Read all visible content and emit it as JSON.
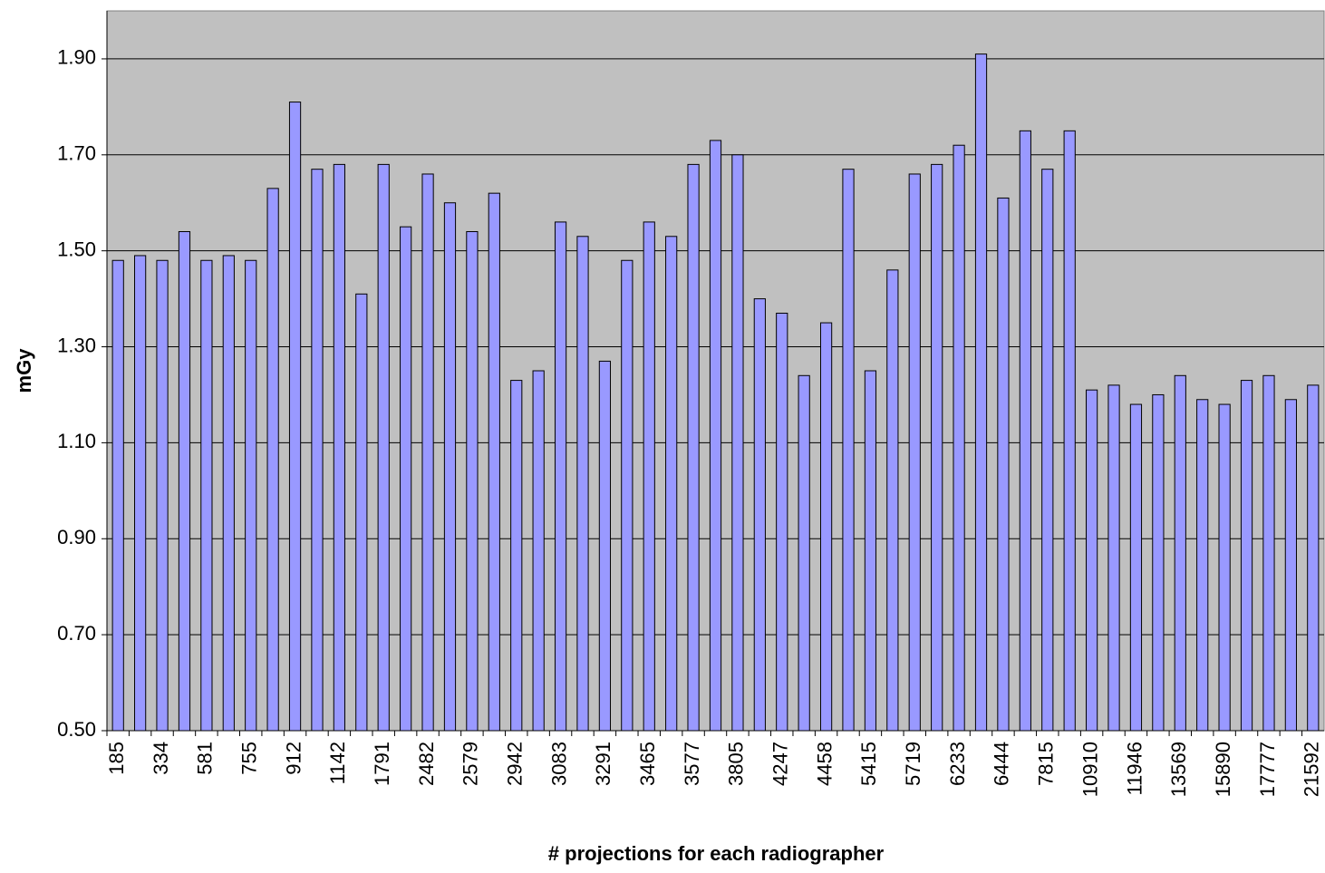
{
  "chart_data": {
    "type": "bar",
    "x_label": "# projections for each radiographer",
    "y_label": "mGy",
    "categories": [
      "185",
      null,
      "334",
      null,
      "581",
      null,
      "755",
      null,
      "912",
      null,
      "1142",
      null,
      "1791",
      null,
      "2482",
      null,
      "2579",
      null,
      "2942",
      null,
      "3083",
      null,
      "3291",
      null,
      "3465",
      null,
      "3577",
      null,
      "3805",
      null,
      "4247",
      null,
      "4458",
      null,
      "5415",
      null,
      "5719",
      null,
      "6233",
      null,
      "6444",
      null,
      "7815",
      null,
      "10910",
      null,
      "11946",
      null,
      "13569",
      null,
      "15890",
      null,
      "17777",
      null,
      "21592"
    ],
    "values": [
      1.48,
      1.49,
      1.48,
      1.54,
      1.48,
      1.49,
      1.48,
      1.63,
      1.81,
      1.67,
      1.68,
      1.41,
      1.68,
      1.55,
      1.66,
      1.6,
      1.54,
      1.62,
      1.23,
      1.25,
      1.56,
      1.53,
      1.27,
      1.48,
      1.56,
      1.53,
      1.68,
      1.73,
      1.7,
      1.4,
      1.37,
      1.24,
      1.35,
      1.67,
      1.25,
      1.46,
      1.66,
      1.68,
      1.72,
      1.91,
      1.61,
      1.75,
      1.67,
      1.75,
      1.21,
      1.22,
      1.18,
      1.2,
      1.24,
      1.19,
      1.18,
      1.23,
      1.24,
      1.19,
      1.22
    ],
    "color": "#9999ff",
    "ylim": [
      0.5,
      2.0
    ],
    "yticks": [
      {
        "value": 0.5,
        "label": "0.50"
      },
      {
        "value": 0.7,
        "label": "0.70"
      },
      {
        "value": 0.9,
        "label": "0.90"
      },
      {
        "value": 1.1,
        "label": "1.10"
      },
      {
        "value": 1.3,
        "label": "1.30"
      },
      {
        "value": 1.5,
        "label": "1.50"
      },
      {
        "value": 1.7,
        "label": "1.70"
      },
      {
        "value": 1.9,
        "label": "1.90"
      }
    ],
    "grid": true
  }
}
